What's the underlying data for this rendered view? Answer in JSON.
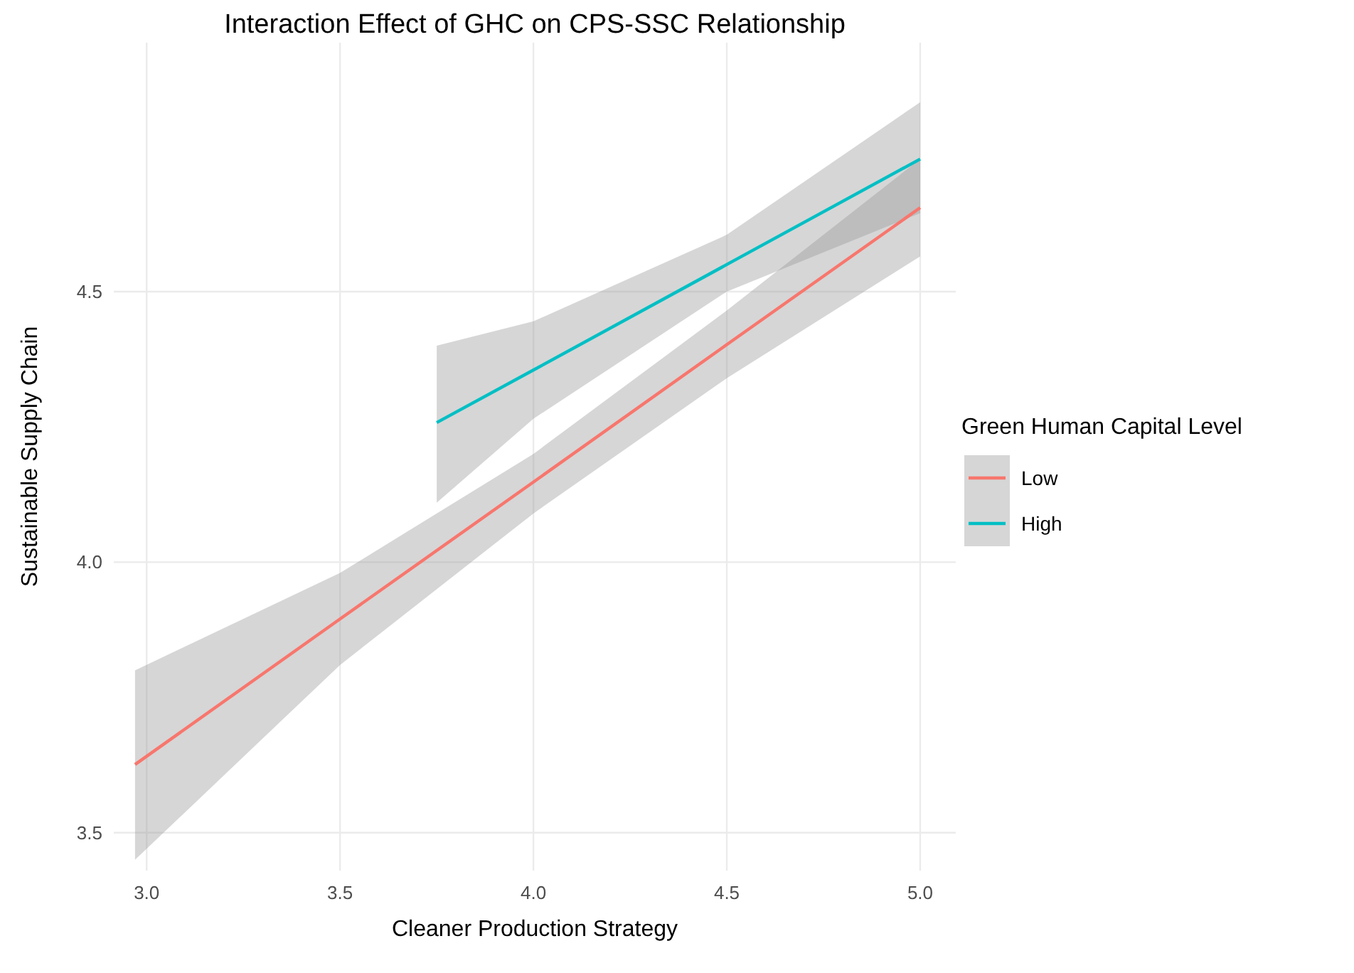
{
  "chart_data": {
    "type": "line",
    "title": "Interaction Effect of GHC on CPS-SSC Relationship",
    "xlabel": "Cleaner Production Strategy",
    "ylabel": "Sustainable Supply Chain",
    "legend_title": "Green Human Capital Level",
    "legend": "right",
    "grid": true,
    "line_style": "solid",
    "marker": "none",
    "xlim": [
      2.915,
      5.092
    ],
    "ylim": [
      3.43,
      4.96
    ],
    "xticks": [
      {
        "value": 3,
        "label": "3.0"
      },
      3.5,
      {
        "value": 4,
        "label": "4.0"
      },
      4.5,
      {
        "value": 5,
        "label": "5.0"
      }
    ],
    "yticks": [
      3.5,
      {
        "value": 4,
        "label": "4.0"
      },
      4.5
    ],
    "series": [
      {
        "name": "Low",
        "color": "#f8766d",
        "x": [
          2.97,
          3.5,
          4.0,
          4.5,
          5.0
        ],
        "values": [
          3.626,
          3.895,
          4.148,
          4.402,
          4.655
        ],
        "lower": [
          3.45,
          3.81,
          4.09,
          4.34,
          4.565
        ],
        "upper": [
          3.8,
          3.98,
          4.2,
          4.465,
          4.745
        ]
      },
      {
        "name": "High",
        "color": "#00bfc4",
        "x": [
          3.75,
          4.0,
          4.5,
          5.0
        ],
        "values": [
          4.258,
          4.355,
          4.55,
          4.745
        ],
        "lower": [
          4.11,
          4.265,
          4.5,
          4.645
        ],
        "upper": [
          4.4,
          4.445,
          4.605,
          4.85
        ]
      }
    ]
  }
}
